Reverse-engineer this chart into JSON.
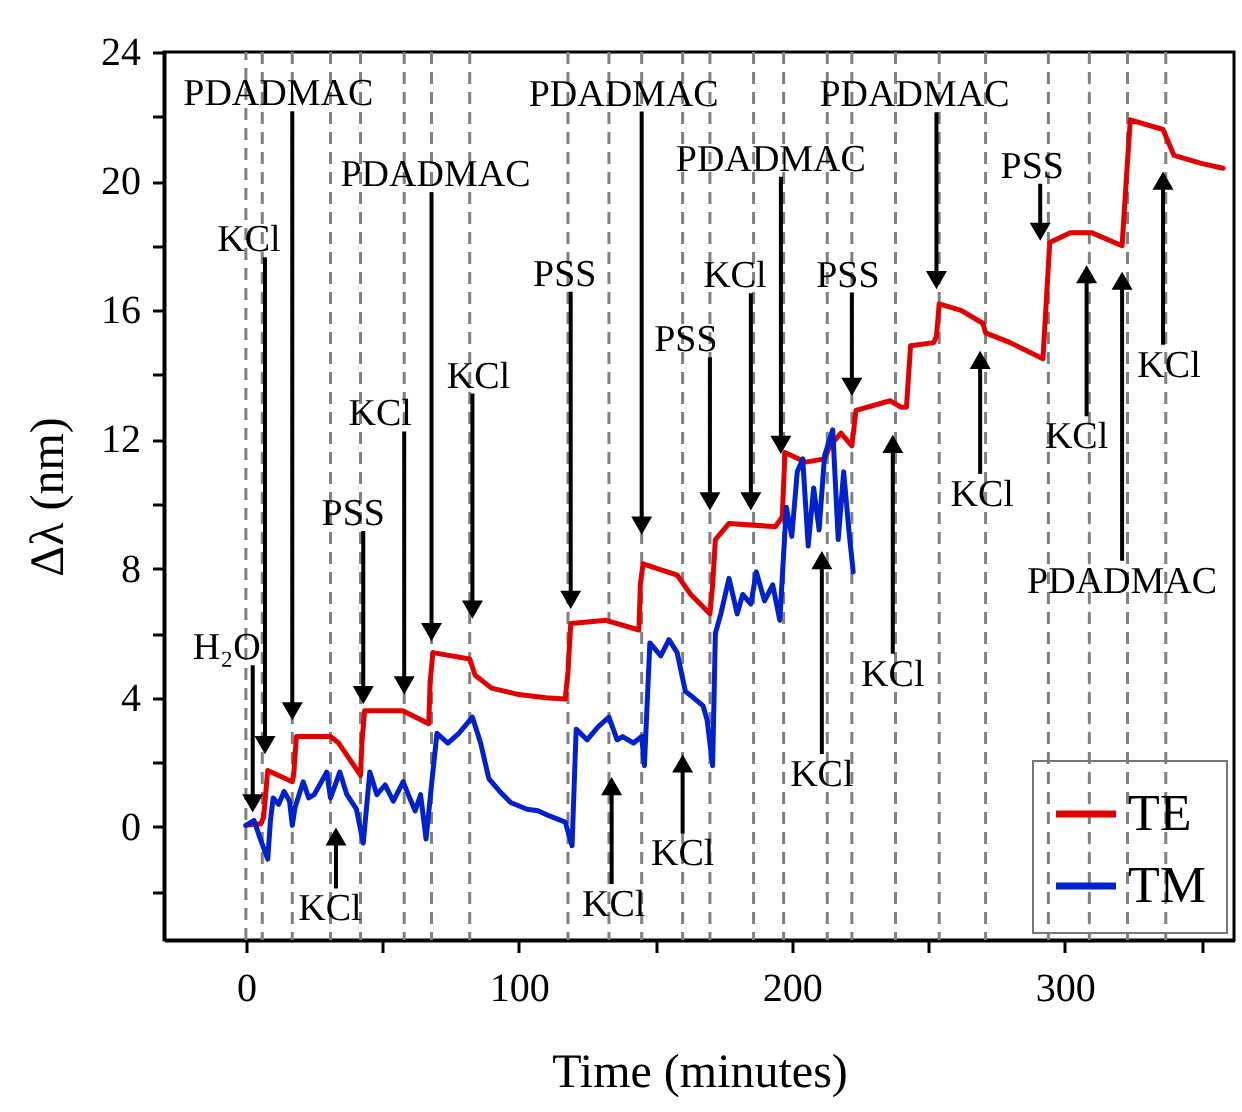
{
  "chart_data": {
    "type": "line",
    "xlabel": "Time (minutes)",
    "ylabel": "Δλ (nm)",
    "xlim": [
      -30,
      362
    ],
    "xticks": [
      0,
      {
        "value": 50,
        "label": null
      },
      100,
      {
        "value": 150,
        "label": null
      },
      200,
      {
        "value": 250,
        "label": null
      },
      300,
      {
        "value": 350,
        "label": null
      }
    ],
    "ylim": [
      -3.5,
      24
    ],
    "yticks": [
      {
        "value": -2,
        "label": null
      },
      0,
      {
        "value": 2,
        "label": null
      },
      4,
      {
        "value": 6,
        "label": null
      },
      8,
      {
        "value": 10,
        "label": null
      },
      12,
      {
        "value": 14,
        "label": null
      },
      16,
      {
        "value": 18,
        "label": null
      },
      20,
      {
        "value": 22,
        "label": null
      },
      24
    ],
    "legend": "bottom right",
    "series": [
      {
        "name": "TE",
        "color": "#e00000",
        "x": [
          0,
          5.5,
          6.5,
          8,
          17,
          17.5,
          18.5,
          31,
          34,
          42,
          42.5,
          43.5,
          57.5,
          67,
          67.5,
          68.5,
          82,
          84,
          90,
          100,
          110,
          117,
          118,
          119,
          132,
          144,
          144.5,
          145.5,
          158,
          163,
          170,
          171,
          172,
          177,
          194,
          196.5,
          197.5,
          205,
          212,
          214,
          218,
          222,
          223.5,
          236,
          240,
          242,
          243.5,
          252,
          253,
          254,
          262,
          270,
          271,
          280,
          292,
          294.5,
          302,
          310,
          321,
          322.5,
          324,
          336,
          338,
          340,
          350,
          358
        ],
        "values": [
          0.05,
          0.1,
          0.3,
          1.75,
          1.4,
          1.6,
          2.8,
          2.8,
          2.6,
          1.6,
          2.6,
          3.6,
          3.6,
          3.2,
          4.5,
          5.4,
          5.2,
          4.7,
          4.3,
          4.1,
          4.0,
          3.96,
          4.8,
          6.3,
          6.4,
          6.1,
          7.5,
          8.15,
          7.8,
          7.2,
          6.6,
          7.5,
          8.9,
          9.4,
          9.3,
          9.6,
          11.6,
          11.3,
          11.4,
          11.8,
          12.2,
          11.8,
          12.9,
          13.2,
          13.0,
          13.0,
          14.9,
          15.0,
          15.2,
          16.2,
          16.0,
          15.6,
          15.3,
          15.0,
          14.5,
          18.1,
          18.4,
          18.4,
          18.0,
          20.0,
          21.9,
          21.6,
          21.2,
          20.8,
          20.55,
          20.4
        ]
      },
      {
        "name": "TM",
        "color": "#0022cc",
        "x": [
          0,
          3,
          5,
          8,
          9,
          10,
          12,
          14,
          16,
          17,
          18,
          21,
          23,
          25,
          27,
          29.6,
          31,
          34.4,
          37,
          40.5,
          43,
          45.4,
          48,
          51,
          54,
          57.6,
          60,
          62,
          64,
          66,
          68,
          70,
          74,
          78,
          83,
          86,
          89,
          93,
          97,
          103,
          107,
          111,
          117,
          119.5,
          121,
          125,
          129,
          133,
          136,
          138,
          142,
          145,
          146,
          148,
          152,
          155,
          158,
          161,
          164,
          167.5,
          169,
          171,
          172,
          174,
          177,
          180,
          182,
          185,
          187,
          190,
          193,
          195.6,
          198,
          200,
          202,
          204,
          206,
          208,
          210,
          212,
          215,
          217,
          219,
          221,
          222.5
        ],
        "values": [
          0.05,
          0.2,
          -0.3,
          -1.0,
          0.2,
          0.9,
          0.7,
          1.1,
          0.8,
          0.05,
          0.6,
          1.4,
          0.9,
          1.0,
          1.3,
          1.7,
          0.9,
          1.7,
          1.0,
          0.55,
          -0.5,
          1.7,
          1.0,
          1.3,
          0.8,
          1.4,
          0.9,
          0.5,
          1.0,
          -0.37,
          1.3,
          2.9,
          2.6,
          2.9,
          3.4,
          2.6,
          1.5,
          1.1,
          0.76,
          0.55,
          0.5,
          0.35,
          0.15,
          -0.58,
          3.03,
          2.7,
          3.1,
          3.4,
          2.7,
          2.8,
          2.6,
          2.8,
          1.9,
          5.7,
          5.3,
          5.8,
          5.4,
          4.2,
          4.0,
          3.75,
          3.3,
          1.9,
          6.0,
          6.6,
          7.7,
          6.6,
          7.2,
          6.9,
          7.9,
          7.0,
          7.5,
          6.4,
          9.9,
          9.0,
          11.0,
          11.4,
          8.7,
          10.5,
          9.2,
          11.5,
          12.3,
          8.9,
          11.0,
          9.1,
          7.9
        ]
      }
    ],
    "ref_lines": [
      {
        "axis": "x",
        "value": 0,
        "color": "#808080",
        "line_style": "dashed"
      },
      {
        "axis": "x",
        "value": 6,
        "color": "#808080",
        "line_style": "dashed"
      },
      {
        "axis": "x",
        "value": 17,
        "color": "#808080",
        "line_style": "dashed"
      },
      {
        "axis": "x",
        "value": 31,
        "color": "#808080",
        "line_style": "dashed"
      },
      {
        "axis": "x",
        "value": 42,
        "color": "#808080",
        "line_style": "dashed"
      },
      {
        "axis": "x",
        "value": 58,
        "color": "#808080",
        "line_style": "dashed"
      },
      {
        "axis": "x",
        "value": 68,
        "color": "#808080",
        "line_style": "dashed"
      },
      {
        "axis": "x",
        "value": 82,
        "color": "#808080",
        "line_style": "dashed"
      },
      {
        "axis": "x",
        "value": 118,
        "color": "#808080",
        "line_style": "dashed"
      },
      {
        "axis": "x",
        "value": 133,
        "color": "#808080",
        "line_style": "dashed"
      },
      {
        "axis": "x",
        "value": 145,
        "color": "#808080",
        "line_style": "dashed"
      },
      {
        "axis": "x",
        "value": 160,
        "color": "#808080",
        "line_style": "dashed"
      },
      {
        "axis": "x",
        "value": 170,
        "color": "#808080",
        "line_style": "dashed"
      },
      {
        "axis": "x",
        "value": 186,
        "color": "#808080",
        "line_style": "dashed"
      },
      {
        "axis": "x",
        "value": 197,
        "color": "#808080",
        "line_style": "dashed"
      },
      {
        "axis": "x",
        "value": 213,
        "color": "#808080",
        "line_style": "dashed"
      },
      {
        "axis": "x",
        "value": 222,
        "color": "#808080",
        "line_style": "dashed"
      },
      {
        "axis": "x",
        "value": 238,
        "color": "#808080",
        "line_style": "dashed"
      },
      {
        "axis": "x",
        "value": 254,
        "color": "#808080",
        "line_style": "dashed"
      },
      {
        "axis": "x",
        "value": 271,
        "color": "#808080",
        "line_style": "dashed"
      },
      {
        "axis": "x",
        "value": 294,
        "color": "#808080",
        "line_style": "dashed"
      },
      {
        "axis": "x",
        "value": 309,
        "color": "#808080",
        "line_style": "dashed"
      },
      {
        "axis": "x",
        "value": 323,
        "color": "#808080",
        "line_style": "dashed"
      },
      {
        "axis": "x",
        "value": 337,
        "color": "#808080",
        "line_style": "dashed"
      }
    ],
    "annotations": [
      {
        "text": "H₂O",
        "x": 2.5,
        "y": 0.3
      },
      {
        "text": "KCl",
        "x": 7,
        "y": 2.1
      },
      {
        "text": "PDADMAC",
        "x": 17,
        "y": 3.15
      },
      {
        "text": "PSS",
        "x": 43,
        "y": 3.65
      },
      {
        "text": "KCl",
        "x": 58,
        "y": 3.95
      },
      {
        "text": "PDADMAC",
        "x": 68,
        "y": 5.6
      },
      {
        "text": "KCl",
        "x": 83,
        "y": 6.3
      },
      {
        "text": "PSS",
        "x": 119,
        "y": 6.6
      },
      {
        "text": "PDADMAC",
        "x": 145,
        "y": 8.9
      },
      {
        "text": "PSS",
        "x": 170,
        "y": 9.65
      },
      {
        "text": "PDADMAC",
        "x": 196,
        "y": 11.4
      },
      {
        "text": "KCl",
        "x": 185,
        "y": 9.65
      },
      {
        "text": "PSS",
        "x": 222,
        "y": 13.2
      },
      {
        "text": "PDADMAC",
        "x": 253,
        "y": 16.5
      },
      {
        "text": "PSS",
        "x": 291,
        "y": 18.0
      },
      {
        "text": "KCl",
        "x": 308,
        "y": 17.55
      },
      {
        "text": "PDADMAC",
        "x": 321,
        "y": 17.35
      },
      {
        "text": "KCl",
        "x": 336,
        "y": 20.45
      },
      {
        "text": "KCl",
        "x": 269,
        "y": 14.9
      },
      {
        "text": "KCl",
        "x": 237,
        "y": 12.3
      },
      {
        "text": "KCl",
        "x": 211,
        "y": 8.7
      },
      {
        "text": "KCl",
        "x": 33,
        "y": 0.14
      },
      {
        "text": "KCl",
        "x": 134,
        "y": 1.7
      },
      {
        "text": "KCl",
        "x": 160,
        "y": 2.4
      }
    ]
  }
}
